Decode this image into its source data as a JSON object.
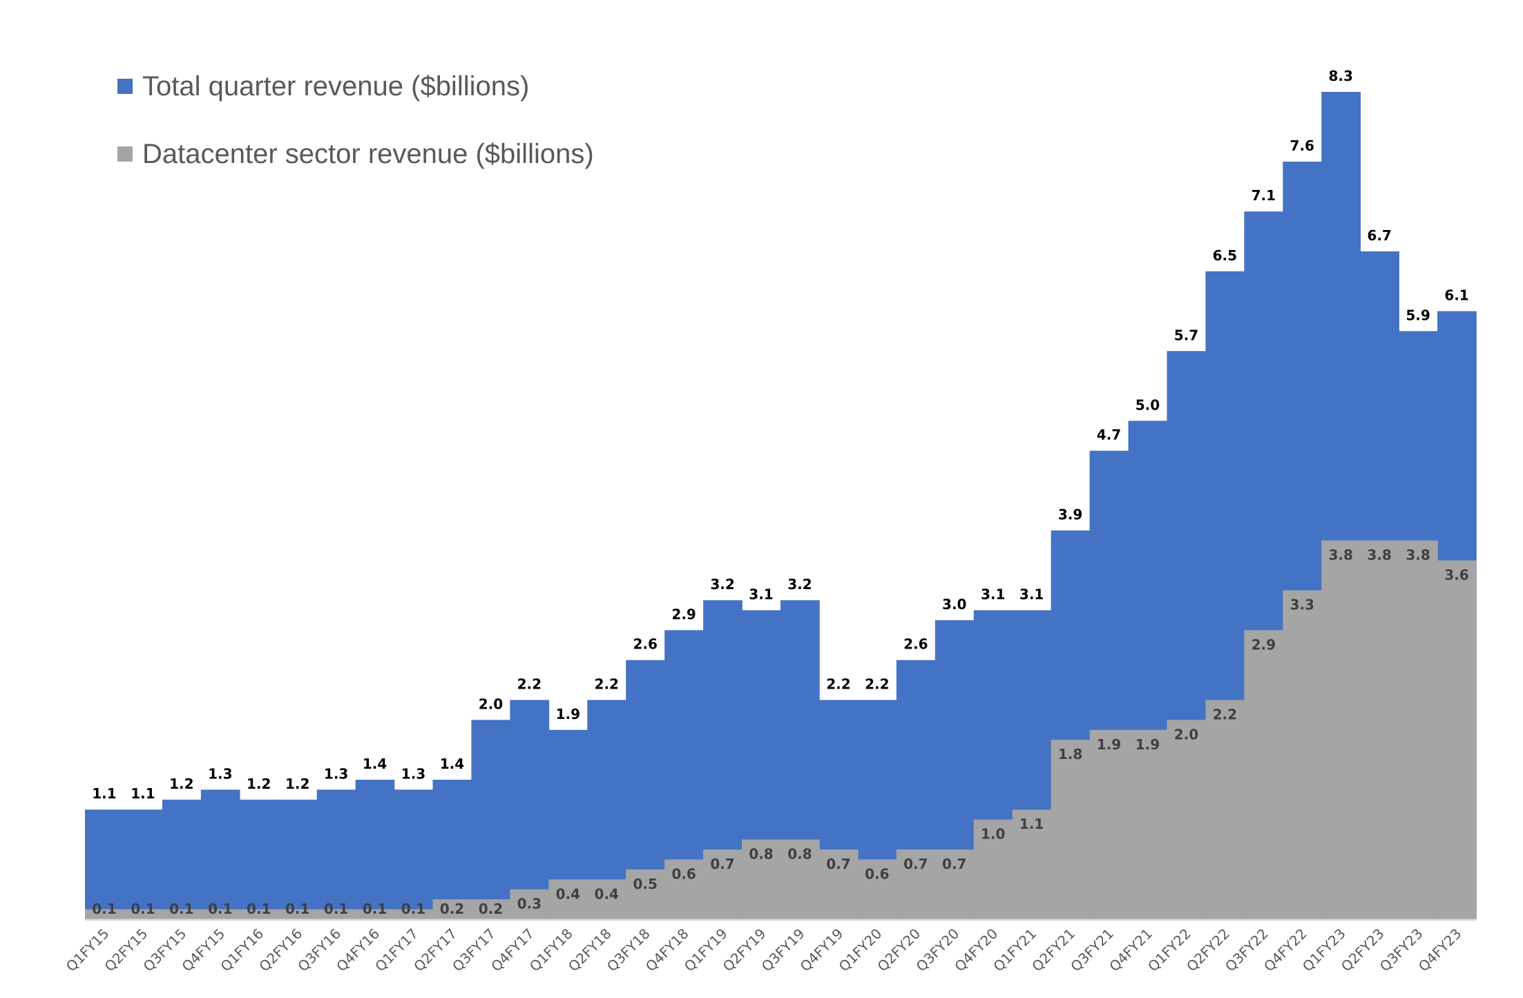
{
  "chart_data": {
    "type": "area",
    "categories": [
      "Q1FY15",
      "Q2FY15",
      "Q3FY15",
      "Q4FY15",
      "Q1FY16",
      "Q2FY16",
      "Q3FY16",
      "Q4FY16",
      "Q1FY17",
      "Q2FY17",
      "Q3FY17",
      "Q4FY17",
      "Q1FY18",
      "Q2FY18",
      "Q3FY18",
      "Q4FY18",
      "Q1FY19",
      "Q2FY19",
      "Q3FY19",
      "Q4FY19",
      "Q1FY20",
      "Q2FY20",
      "Q3FY20",
      "Q4FY20",
      "Q1FY21",
      "Q2FY21",
      "Q3FY21",
      "Q4FY21",
      "Q1FY22",
      "Q2FY22",
      "Q3FY22",
      "Q4FY22",
      "Q1FY23",
      "Q2FY23",
      "Q3FY23",
      "Q4FY23"
    ],
    "series": [
      {
        "name": "Total quarter revenue ($billions)",
        "color": "#4472c4",
        "label_color": "#000000",
        "values": [
          1.1,
          1.1,
          1.2,
          1.3,
          1.2,
          1.2,
          1.3,
          1.4,
          1.3,
          1.4,
          2.0,
          2.2,
          1.9,
          2.2,
          2.6,
          2.9,
          3.2,
          3.1,
          3.2,
          2.2,
          2.2,
          2.6,
          3.0,
          3.1,
          3.1,
          3.9,
          4.7,
          5.0,
          5.7,
          6.5,
          7.1,
          7.6,
          8.3,
          6.7,
          5.9,
          6.1
        ]
      },
      {
        "name": "Datacenter sector revenue ($billions)",
        "color": "#a5a5a5",
        "label_color": "#404040",
        "values": [
          0.1,
          0.1,
          0.1,
          0.1,
          0.1,
          0.1,
          0.1,
          0.1,
          0.1,
          0.2,
          0.2,
          0.3,
          0.4,
          0.4,
          0.5,
          0.6,
          0.7,
          0.8,
          0.8,
          0.7,
          0.6,
          0.7,
          0.7,
          1.0,
          1.1,
          1.8,
          1.9,
          1.9,
          2.0,
          2.2,
          2.9,
          3.3,
          3.8,
          3.8,
          3.8,
          3.6
        ]
      }
    ],
    "ylim": [
      0,
      8.3
    ],
    "grid": false,
    "legend_position": "top-left",
    "axis_color": "#d9d9d9",
    "tick_label_color": "#595959"
  }
}
